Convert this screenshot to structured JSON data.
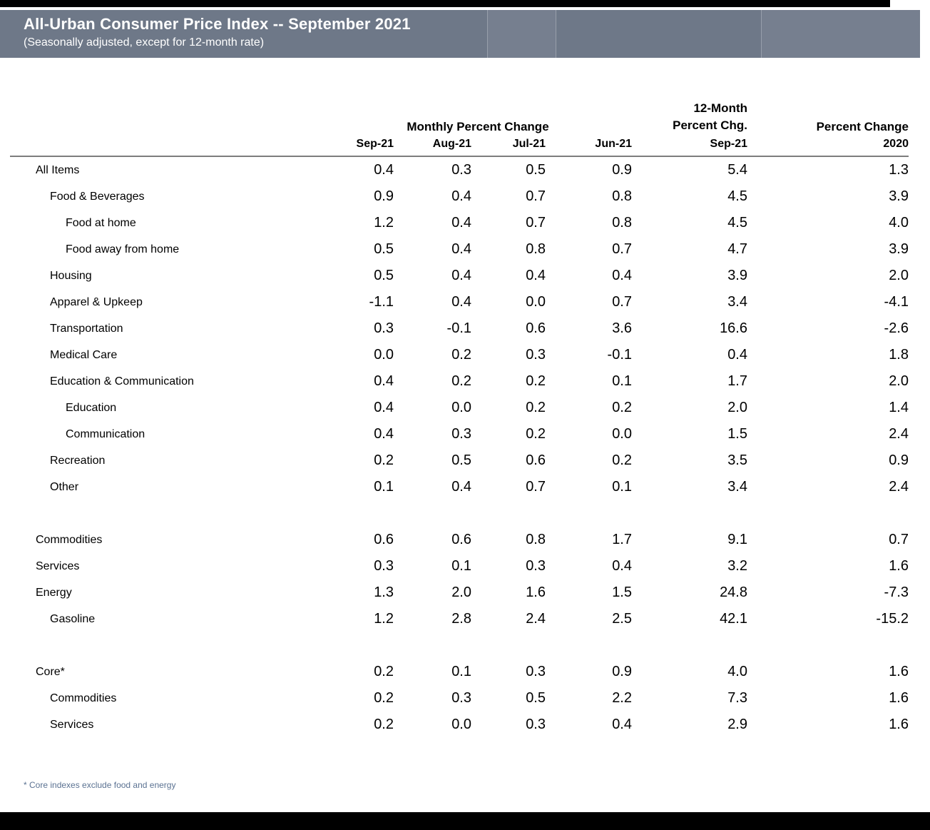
{
  "header": {
    "title": "All-Urban Consumer Price Index -- September 2021",
    "subtitle": "(Seasonally adjusted, except for 12-month rate)"
  },
  "table": {
    "group_header": "Monthly Percent Change",
    "twelve_month_line1": "12-Month",
    "twelve_month_line2": "Percent Chg.",
    "percent_change_2020": "Percent Change",
    "columns": [
      "Sep-21",
      "Aug-21",
      "Jul-21",
      "Jun-21",
      "Sep-21",
      "2020"
    ]
  },
  "footnote": "* Core indexes exclude food and energy",
  "colors": {
    "band_background": "#6e7888",
    "band_text": "#ffffff",
    "edge_bars": "#000000",
    "footnote_text": "#5b7292"
  },
  "chart_data": {
    "type": "table",
    "title": "All-Urban Consumer Price Index -- September 2021",
    "subtitle": "(Seasonally adjusted, except for 12-month rate)",
    "column_groups": [
      "Monthly Percent Change",
      "12-Month Percent Chg.",
      "Percent Change"
    ],
    "columns": [
      "Sep-21",
      "Aug-21",
      "Jul-21",
      "Jun-21",
      "Sep-21",
      "2020"
    ],
    "rows": [
      {
        "label": "All Items",
        "indent": 1,
        "values": [
          "0.4",
          "0.3",
          "0.5",
          "0.9",
          "5.4",
          "1.3"
        ]
      },
      {
        "label": "Food & Beverages",
        "indent": 2,
        "values": [
          "0.9",
          "0.4",
          "0.7",
          "0.8",
          "4.5",
          "3.9"
        ]
      },
      {
        "label": "Food at home",
        "indent": 3,
        "values": [
          "1.2",
          "0.4",
          "0.7",
          "0.8",
          "4.5",
          "4.0"
        ]
      },
      {
        "label": "Food away from home",
        "indent": 3,
        "values": [
          "0.5",
          "0.4",
          "0.8",
          "0.7",
          "4.7",
          "3.9"
        ]
      },
      {
        "label": "Housing",
        "indent": 2,
        "values": [
          "0.5",
          "0.4",
          "0.4",
          "0.4",
          "3.9",
          "2.0"
        ]
      },
      {
        "label": "Apparel & Upkeep",
        "indent": 2,
        "values": [
          "-1.1",
          "0.4",
          "0.0",
          "0.7",
          "3.4",
          "-4.1"
        ]
      },
      {
        "label": "Transportation",
        "indent": 2,
        "values": [
          "0.3",
          "-0.1",
          "0.6",
          "3.6",
          "16.6",
          "-2.6"
        ]
      },
      {
        "label": "Medical Care",
        "indent": 2,
        "values": [
          "0.0",
          "0.2",
          "0.3",
          "-0.1",
          "0.4",
          "1.8"
        ]
      },
      {
        "label": "Education & Communication",
        "indent": 2,
        "values": [
          "0.4",
          "0.2",
          "0.2",
          "0.1",
          "1.7",
          "2.0"
        ]
      },
      {
        "label": "Education",
        "indent": 3,
        "values": [
          "0.4",
          "0.0",
          "0.2",
          "0.2",
          "2.0",
          "1.4"
        ]
      },
      {
        "label": "Communication",
        "indent": 3,
        "values": [
          "0.4",
          "0.3",
          "0.2",
          "0.0",
          "1.5",
          "2.4"
        ]
      },
      {
        "label": "Recreation",
        "indent": 2,
        "values": [
          "0.2",
          "0.5",
          "0.6",
          "0.2",
          "3.5",
          "0.9"
        ]
      },
      {
        "label": "Other",
        "indent": 2,
        "values": [
          "0.1",
          "0.4",
          "0.7",
          "0.1",
          "3.4",
          "2.4"
        ]
      },
      {
        "spacer": true
      },
      {
        "label": "Commodities",
        "indent": 1,
        "values": [
          "0.6",
          "0.6",
          "0.8",
          "1.7",
          "9.1",
          "0.7"
        ]
      },
      {
        "label": "Services",
        "indent": 1,
        "values": [
          "0.3",
          "0.1",
          "0.3",
          "0.4",
          "3.2",
          "1.6"
        ]
      },
      {
        "label": "Energy",
        "indent": 1,
        "values": [
          "1.3",
          "2.0",
          "1.6",
          "1.5",
          "24.8",
          "-7.3"
        ]
      },
      {
        "label": "Gasoline",
        "indent": 2,
        "values": [
          "1.2",
          "2.8",
          "2.4",
          "2.5",
          "42.1",
          "-15.2"
        ]
      },
      {
        "spacer": true
      },
      {
        "label": "Core*",
        "indent": 1,
        "values": [
          "0.2",
          "0.1",
          "0.3",
          "0.9",
          "4.0",
          "1.6"
        ]
      },
      {
        "label": "Commodities",
        "indent": 2,
        "values": [
          "0.2",
          "0.3",
          "0.5",
          "2.2",
          "7.3",
          "1.6"
        ]
      },
      {
        "label": "Services",
        "indent": 2,
        "values": [
          "0.2",
          "0.0",
          "0.3",
          "0.4",
          "2.9",
          "1.6"
        ]
      }
    ]
  }
}
